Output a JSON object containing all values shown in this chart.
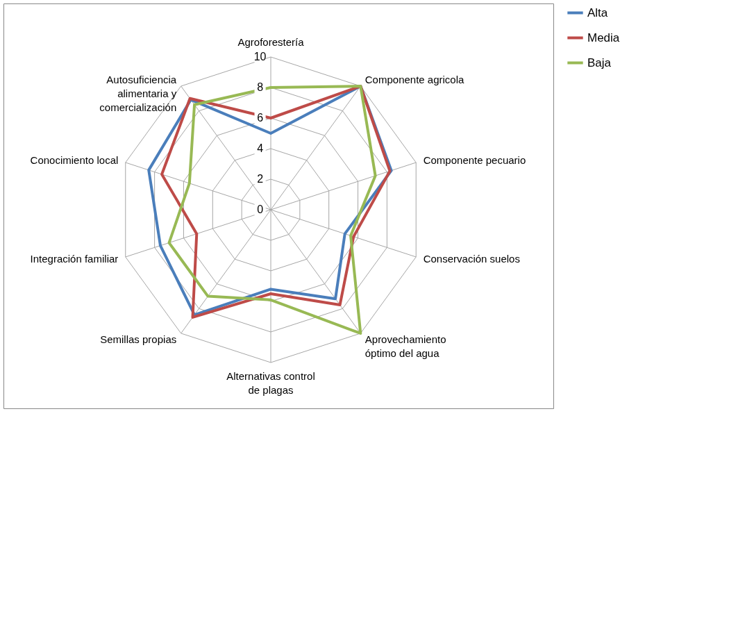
{
  "chart_data": {
    "type": "radar",
    "categories": [
      "Agroforestería",
      "Componente agricola",
      "Componente pecuario",
      "Conservación suelos",
      "Aprovechamiento\nóptimo del agua",
      "Alternativas control\nde plagas",
      "Semillas propias",
      "Integración familiar",
      "Conocimiento local",
      "Autosuficiencia\nalimentaria y\ncomercialización"
    ],
    "series": [
      {
        "name": "Alta",
        "color": "#4a7ebb",
        "values": [
          5,
          10,
          8.3,
          5.1,
          7.2,
          5.2,
          8.5,
          7.6,
          8.4,
          8.9
        ]
      },
      {
        "name": "Media",
        "color": "#be4b48",
        "values": [
          6,
          10,
          8.2,
          5.7,
          7.7,
          5.5,
          8.7,
          5.1,
          7.5,
          9.0
        ]
      },
      {
        "name": "Baja",
        "color": "#98b954",
        "values": [
          8,
          10,
          7.2,
          5.5,
          10,
          5.9,
          7.0,
          7.0,
          5.6,
          8.5
        ]
      }
    ],
    "ylim": [
      0,
      10
    ],
    "yticks": [
      0,
      2,
      4,
      6,
      8,
      10
    ],
    "grid": true,
    "legend": "right"
  }
}
